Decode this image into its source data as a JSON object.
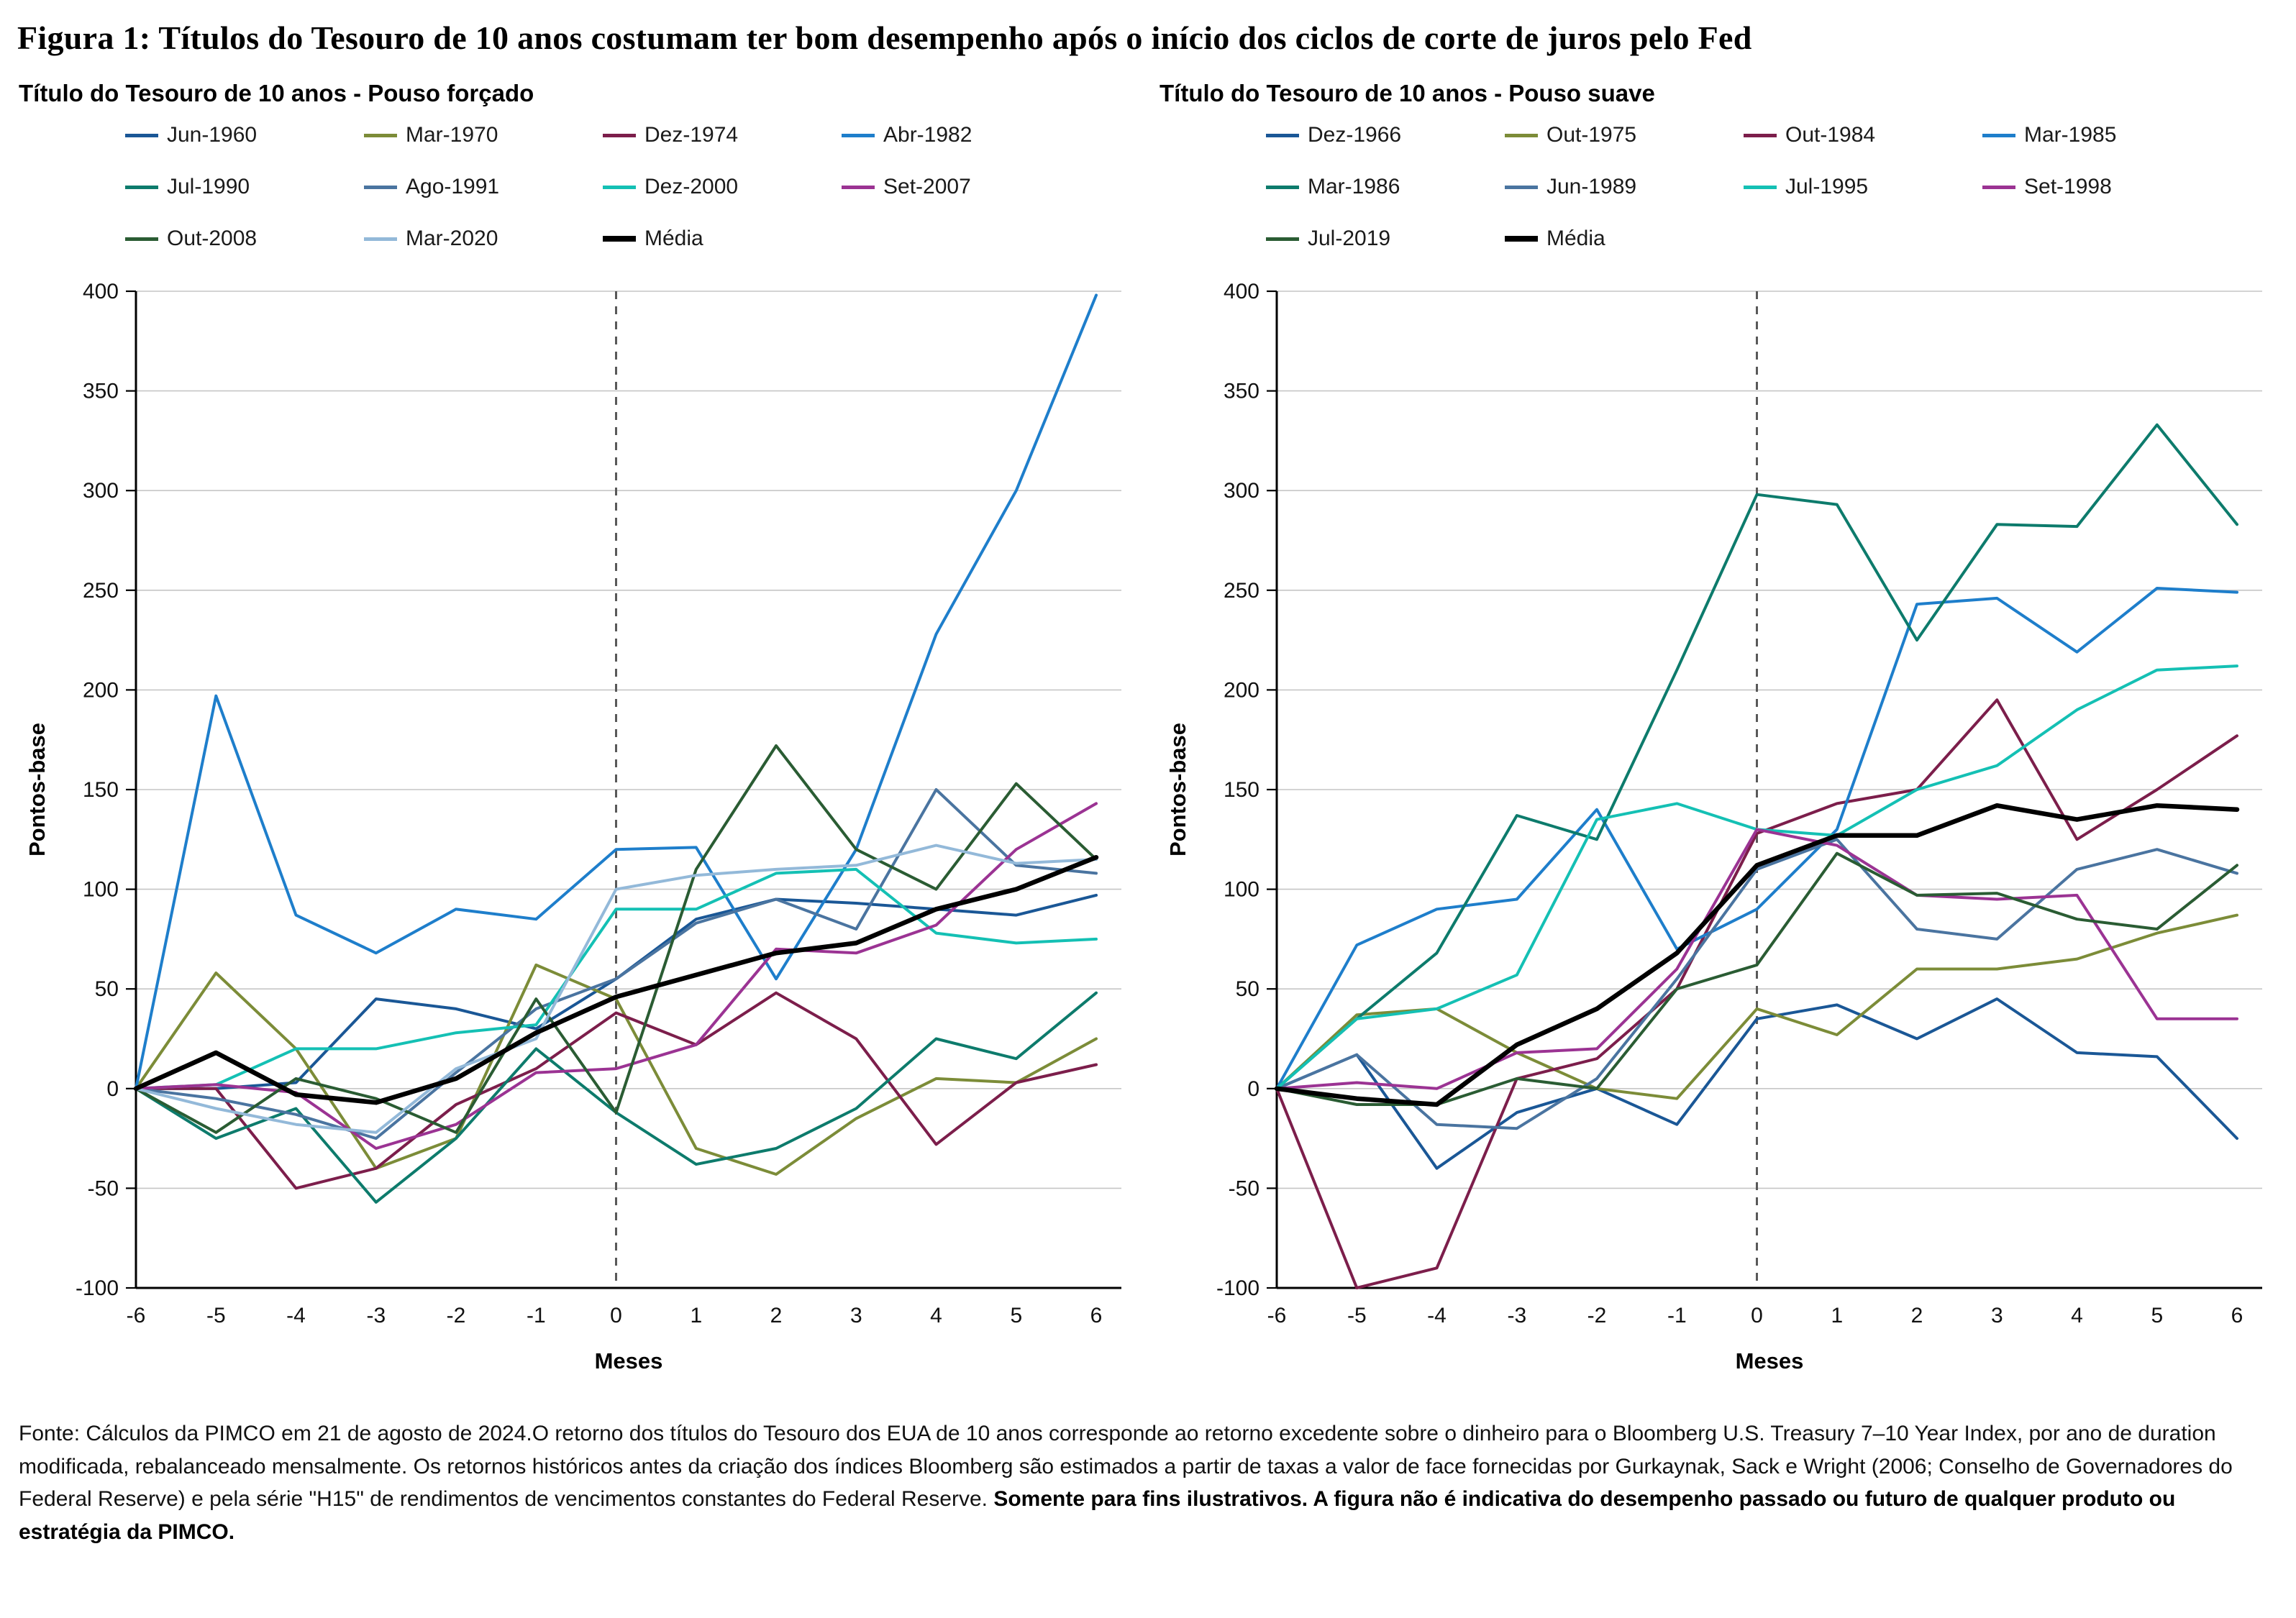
{
  "page": {
    "title": "Figura 1: Títulos do Tesouro de 10 anos costumam ter bom desempenho após o início dos ciclos de corte de juros pelo Fed",
    "footnote": {
      "regular": "Fonte: Cálculos da PIMCO em 21 de agosto de 2024.O retorno dos títulos do Tesouro dos EUA de 10 anos corresponde ao retorno excedente sobre o dinheiro para o Bloomberg U.S. Treasury 7–10 Year Index, por ano de duration modificada, rebalanceado mensalmente. Os retornos históricos antes da criação dos índices Bloomberg são estimados a partir de taxas a valor de face fornecidas por Gurkaynak, Sack e Wright (2006; Conselho de Governadores do Federal Reserve) e pela série \"H15\" de rendimentos de vencimentos constantes do Federal Reserve.",
      "bold": "Somente para fins ilustrativos. A figura não é indicativa do desempenho passado ou futuro de qualquer produto ou estratégia da PIMCO."
    }
  },
  "chart_data": [
    {
      "type": "line",
      "title": "Título do Tesouro de 10 anos - Pouso forçado",
      "xlabel": "Meses",
      "ylabel": "Pontos-base",
      "x": [
        -6,
        -5,
        -4,
        -3,
        -2,
        -1,
        0,
        1,
        2,
        3,
        4,
        5,
        6
      ],
      "ylim": [
        -100,
        400
      ],
      "ytick_step": 50,
      "grid": "horizontal",
      "event_line_x": 0,
      "legend_position": "top",
      "series": [
        {
          "name": "Jun-1960",
          "color": "#1a5796",
          "values": [
            0,
            0,
            3,
            45,
            40,
            30,
            55,
            85,
            95,
            93,
            90,
            87,
            97
          ]
        },
        {
          "name": "Mar-1970",
          "color": "#7c8c38",
          "values": [
            0,
            58,
            20,
            -40,
            -25,
            62,
            45,
            -30,
            -43,
            -15,
            5,
            3,
            25
          ]
        },
        {
          "name": "Dez-1974",
          "color": "#7c1e4b",
          "values": [
            0,
            0,
            -50,
            -40,
            -8,
            10,
            38,
            22,
            48,
            25,
            -28,
            3,
            12
          ]
        },
        {
          "name": "Abr-1982",
          "color": "#1e7ecb",
          "values": [
            0,
            197,
            87,
            68,
            90,
            85,
            120,
            121,
            55,
            120,
            228,
            300,
            398
          ]
        },
        {
          "name": "Jul-1990",
          "color": "#0d7b6c",
          "values": [
            0,
            -25,
            -10,
            -57,
            -25,
            20,
            -12,
            -38,
            -30,
            -10,
            25,
            15,
            48
          ]
        },
        {
          "name": "Ago-1991",
          "color": "#4a74a0",
          "values": [
            0,
            -5,
            -13,
            -25,
            8,
            40,
            55,
            83,
            95,
            80,
            150,
            112,
            108
          ]
        },
        {
          "name": "Dez-2000",
          "color": "#14c0b4",
          "values": [
            0,
            2,
            20,
            20,
            28,
            32,
            90,
            90,
            108,
            110,
            78,
            73,
            75
          ]
        },
        {
          "name": "Set-2007",
          "color": "#9b3393",
          "values": [
            0,
            2,
            -2,
            -30,
            -18,
            8,
            10,
            22,
            70,
            68,
            82,
            120,
            143
          ]
        },
        {
          "name": "Out-2008",
          "color": "#2a5c33",
          "values": [
            0,
            -22,
            5,
            -5,
            -22,
            45,
            -12,
            110,
            172,
            120,
            100,
            153,
            115
          ]
        },
        {
          "name": "Mar-2020",
          "color": "#93b9d9",
          "values": [
            0,
            -10,
            -18,
            -22,
            10,
            25,
            100,
            107,
            110,
            112,
            122,
            113,
            115
          ]
        },
        {
          "name": "Média",
          "color": "#000000",
          "values": [
            0,
            18,
            -3,
            -7,
            5,
            28,
            46,
            57,
            68,
            73,
            90,
            100,
            116
          ]
        }
      ]
    },
    {
      "type": "line",
      "title": "Título do Tesouro de 10 anos - Pouso suave",
      "xlabel": "Meses",
      "ylabel": "Pontos-base",
      "x": [
        -6,
        -5,
        -4,
        -3,
        -2,
        -1,
        0,
        1,
        2,
        3,
        4,
        5,
        6
      ],
      "ylim": [
        -100,
        400
      ],
      "ytick_step": 50,
      "grid": "horizontal",
      "event_line_x": 0,
      "legend_position": "top",
      "series": [
        {
          "name": "Dez-1966",
          "color": "#1a5796",
          "values": [
            0,
            17,
            -40,
            -12,
            0,
            -18,
            35,
            42,
            25,
            45,
            18,
            16,
            -25
          ]
        },
        {
          "name": "Out-1975",
          "color": "#7c8c38",
          "values": [
            0,
            37,
            40,
            18,
            0,
            -5,
            40,
            27,
            60,
            60,
            65,
            78,
            87
          ]
        },
        {
          "name": "Out-1984",
          "color": "#7c1e4b",
          "values": [
            0,
            -100,
            -90,
            5,
            15,
            50,
            128,
            143,
            150,
            195,
            125,
            150,
            177
          ]
        },
        {
          "name": "Mar-1985",
          "color": "#1e7ecb",
          "values": [
            0,
            72,
            90,
            95,
            140,
            70,
            90,
            130,
            243,
            246,
            219,
            251,
            249
          ]
        },
        {
          "name": "Mar-1986",
          "color": "#0d7b6c",
          "values": [
            0,
            35,
            68,
            137,
            125,
            210,
            298,
            293,
            225,
            283,
            282,
            333,
            283
          ]
        },
        {
          "name": "Jun-1989",
          "color": "#4a74a0",
          "values": [
            0,
            17,
            -18,
            -20,
            5,
            55,
            110,
            125,
            80,
            75,
            110,
            120,
            108
          ]
        },
        {
          "name": "Jul-1995",
          "color": "#14c0b4",
          "values": [
            0,
            35,
            40,
            57,
            135,
            143,
            130,
            127,
            150,
            162,
            190,
            210,
            212
          ]
        },
        {
          "name": "Set-1998",
          "color": "#9b3393",
          "values": [
            0,
            3,
            0,
            18,
            20,
            60,
            130,
            122,
            97,
            95,
            97,
            35,
            35
          ]
        },
        {
          "name": "Jul-2019",
          "color": "#2a5c33",
          "values": [
            0,
            -8,
            -8,
            5,
            0,
            50,
            62,
            118,
            97,
            98,
            85,
            80,
            112
          ]
        },
        {
          "name": "Média",
          "color": "#000000",
          "values": [
            0,
            -5,
            -8,
            22,
            40,
            68,
            112,
            127,
            127,
            142,
            135,
            142,
            140
          ]
        }
      ]
    }
  ]
}
